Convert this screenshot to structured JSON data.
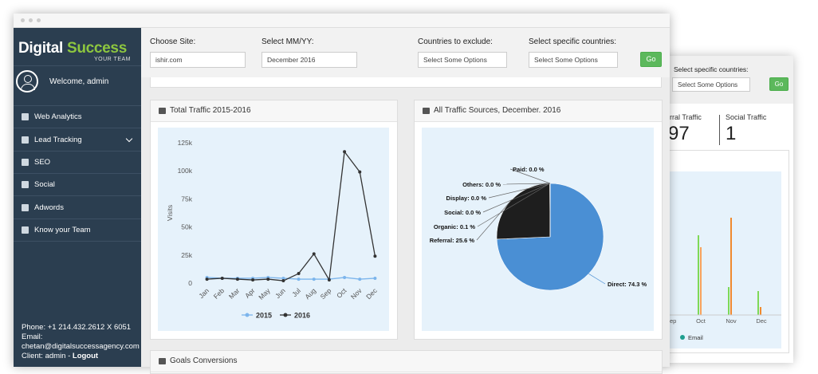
{
  "sidebar": {
    "logo_first": "Digital",
    "logo_second": "Success",
    "logo_sub": "YOUR TEAM",
    "welcome": "Welcome, admin",
    "menu": [
      "Web Analytics",
      "Lead Tracking",
      "SEO",
      "Social",
      "Adwords",
      "Know your Team"
    ],
    "footer": {
      "phone": "Phone: +1 214.432.2612 X 6051",
      "email_label": "Email:",
      "email": "chetan@digitalsuccessagency.com",
      "client": "Client: admin -",
      "logout": "Logout"
    }
  },
  "filters": {
    "site_label": "Choose Site:",
    "site": "ishir.com",
    "date_label": "Select MM/YY:",
    "date": "December 2016",
    "exclude_label": "Countries to exclude:",
    "exclude_placeholder": "Select Some Options",
    "specific_label": "Select specific countries:",
    "specific_placeholder": "Select Some Options",
    "go": "Go"
  },
  "chart_data": [
    {
      "type": "line",
      "title": "Total Traffic 2015-2016",
      "y_label": "Visits",
      "categories": [
        "Jan",
        "Feb",
        "Mar",
        "Apr",
        "May",
        "Jun",
        "Jul",
        "Aug",
        "Sep",
        "Oct",
        "Nov",
        "Dec"
      ],
      "series": [
        {
          "name": "2015",
          "color": "#7cb5ec",
          "values": [
            5000,
            4300,
            4300,
            4300,
            5000,
            4300,
            3500,
            3500,
            3500,
            5000,
            3500,
            4300
          ]
        },
        {
          "name": "2016",
          "color": "#333333",
          "values": [
            3500,
            4300,
            3500,
            2800,
            3500,
            2100,
            8500,
            26000,
            2800,
            117000,
            99000,
            24000
          ]
        }
      ],
      "ylim": [
        0,
        125000
      ],
      "yticks": [
        0,
        {
          "value": 25000,
          "label": "25k"
        },
        {
          "value": 50000,
          "label": "50k"
        },
        {
          "value": 75000,
          "label": "75k"
        },
        {
          "value": 100000,
          "label": "100k"
        },
        {
          "value": 125000,
          "label": "125k"
        }
      ],
      "grid": false,
      "legend": "bottom"
    },
    {
      "type": "pie",
      "title": "All Traffic Sources, December. 2016",
      "categories": [
        "Direct",
        "Referral",
        "Organic",
        "Social",
        "Display",
        "Others",
        "Paid"
      ],
      "values": [
        74.3,
        25.6,
        0.1,
        0.0,
        0.0,
        0.0,
        0.0
      ],
      "value_labels": [
        "Direct: 74.3 %",
        "Referral: 25.6 %",
        "Organic: 0.1 %",
        "Social: 0.0 %",
        "Display: 0.0 %",
        "Others: 0.0 %",
        "Paid: 0.0 %"
      ],
      "colors": [
        "#4a8fd4",
        "#1e1e1e",
        "#90ed7d",
        "#f7a35c",
        "#8085e9",
        "#f15c80",
        "#e4d354"
      ]
    }
  ],
  "goals_title": "Goals Conversions",
  "back_window": {
    "specific_label": "Select specific countries:",
    "specific_placeholder": "Select Some Options",
    "go": "Go",
    "stat_1_label": "rral Traffic",
    "stat_1_value": "97",
    "stat_2_label": "Social Traffic",
    "stat_2_value": "1",
    "axis_labels": [
      "ep",
      "Oct",
      "Nov",
      "Dec"
    ],
    "legend": "Email"
  }
}
